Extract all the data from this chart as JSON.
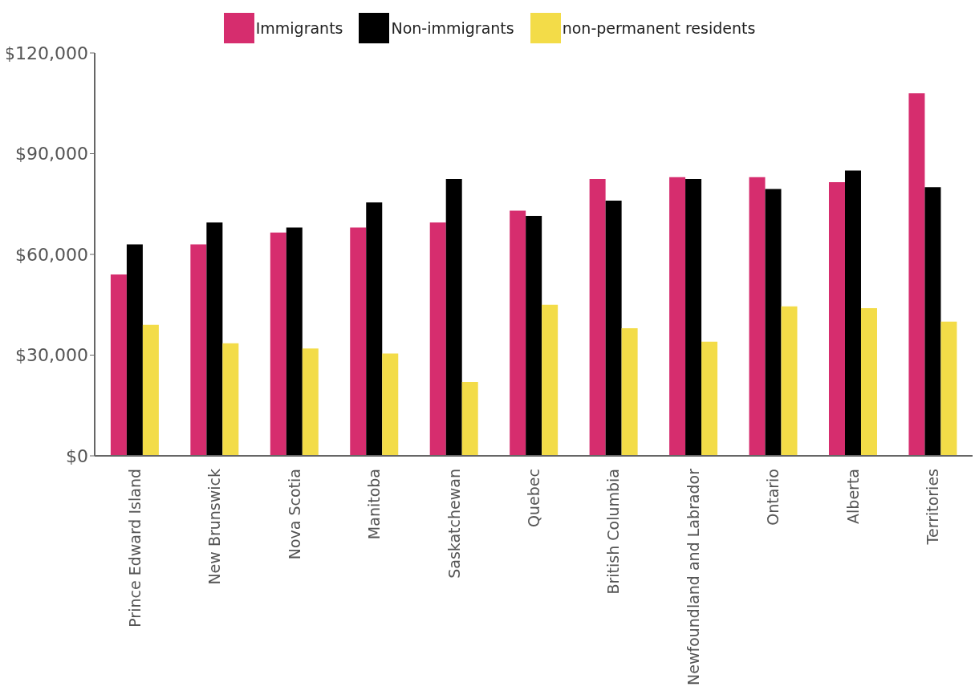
{
  "chart_data": {
    "type": "bar",
    "categories": [
      "Prince Edward Island",
      "New Brunswick",
      "Nova Scotia",
      "Manitoba",
      "Saskatchewan",
      "Quebec",
      "British Columbia",
      "Newfoundland and Labrador",
      "Ontario",
      "Alberta",
      "Territories"
    ],
    "series": [
      {
        "name": "Immigrants",
        "color": "#d62d6e",
        "values": [
          54000,
          63000,
          66500,
          68000,
          69500,
          73000,
          82500,
          83000,
          83000,
          81500,
          108000
        ]
      },
      {
        "name": "Non-immigrants",
        "color": "#000000",
        "values": [
          63000,
          69500,
          68000,
          75500,
          82500,
          71500,
          76000,
          82500,
          79500,
          85000,
          80000
        ]
      },
      {
        "name": "non-permanent residents",
        "color": "#f3dc48",
        "values": [
          39000,
          33500,
          32000,
          30500,
          22000,
          45000,
          38000,
          34000,
          44500,
          44000,
          40000
        ]
      }
    ],
    "ylim": [
      0,
      120000
    ],
    "yticks": [
      {
        "value": 0,
        "label": "$0"
      },
      {
        "value": 30000,
        "label": "$30,000"
      },
      {
        "value": 60000,
        "label": "$60,000"
      },
      {
        "value": 90000,
        "label": "$90,000"
      },
      {
        "value": 120000,
        "label": "$120,000"
      }
    ],
    "grid": false,
    "legend": "top"
  }
}
